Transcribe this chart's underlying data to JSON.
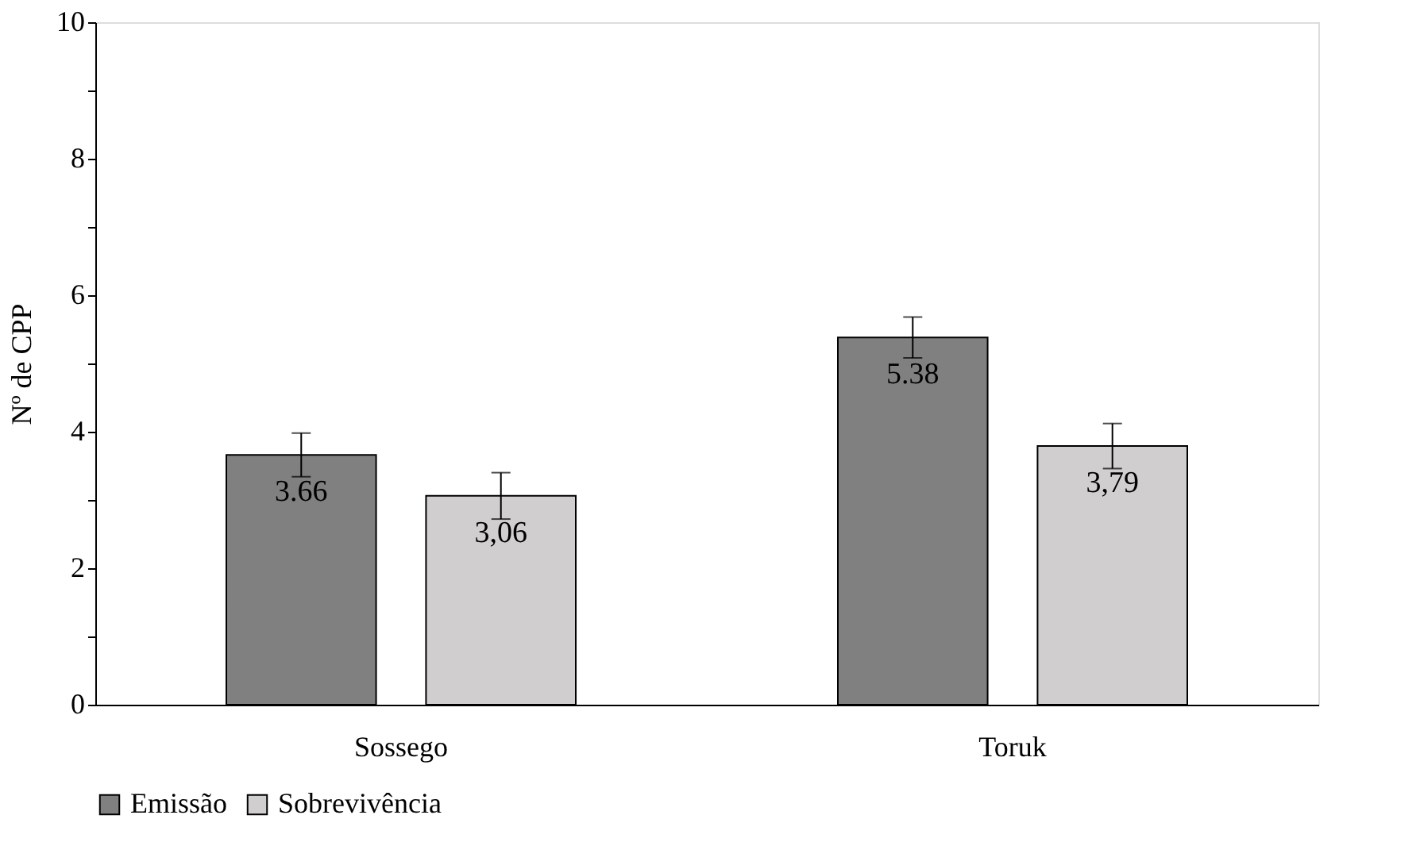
{
  "chart_data": {
    "type": "bar",
    "ylabel": "Nº de CPP",
    "categories": [
      "Sossego",
      "Toruk"
    ],
    "series": [
      {
        "name": "Emissão",
        "color": "#808080",
        "values": [
          3.66,
          5.38
        ],
        "errors": [
          0.32,
          0.3
        ],
        "value_labels": [
          "3.66",
          "5.38"
        ]
      },
      {
        "name": "Sobrevivência",
        "color": "#d0cecf",
        "values": [
          3.06,
          3.79
        ],
        "errors": [
          0.34,
          0.33
        ],
        "value_labels": [
          "3,06",
          "3,79"
        ]
      }
    ],
    "ylim": [
      0,
      10
    ],
    "yticks": [
      0,
      {
        "value": 1,
        "label": null
      },
      2,
      {
        "value": 3,
        "label": null
      },
      4,
      {
        "value": 5,
        "label": null
      },
      6,
      {
        "value": 7,
        "label": null
      },
      8,
      {
        "value": 9,
        "label": null
      },
      10
    ],
    "grid": false,
    "legend": "bottom"
  }
}
